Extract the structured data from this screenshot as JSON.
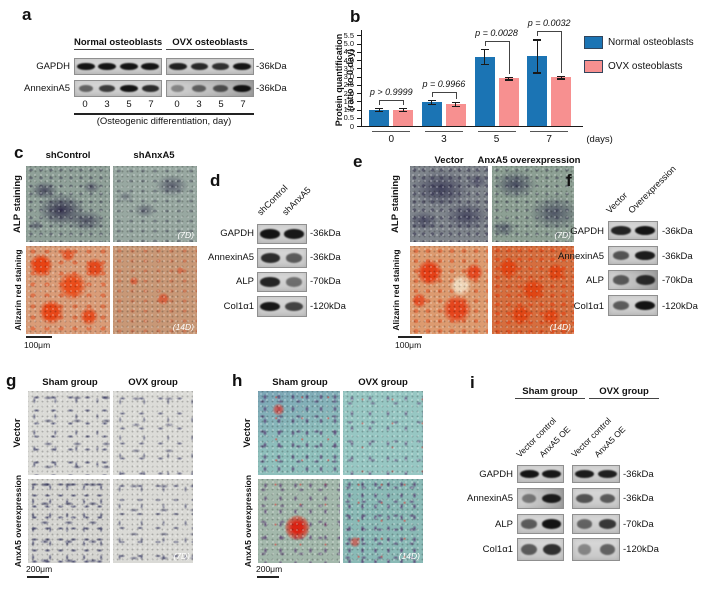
{
  "panels": {
    "a": {
      "label": "a",
      "group1": "Normal osteoblasts",
      "group2": "OVX osteoblasts",
      "row1": "GAPDH",
      "row2": "AnnexinA5",
      "kda1": "-36kDa",
      "kda2": "-36kDa",
      "lanes": [
        "0",
        "3",
        "5",
        "7"
      ],
      "caption": "(Osteogenic differentiation, day)"
    },
    "b": {
      "label": "b"
    },
    "c": {
      "label": "c",
      "col1": "shControl",
      "col2": "shAnxA5",
      "row1": "ALP staining",
      "row2": "Alizarin red staining",
      "tag1": "(7D)",
      "tag2": "(14D)",
      "scale": "100μm"
    },
    "d": {
      "label": "d",
      "lane1": "shControl",
      "lane2": "shAnxA5",
      "rows": [
        "GAPDH",
        "AnnexinA5",
        "ALP",
        "Col1α1"
      ],
      "kdas": [
        "-36kDa",
        "-36kDa",
        "-70kDa",
        "-120kDa"
      ]
    },
    "e": {
      "label": "e",
      "col1": "Vector",
      "col2": "AnxA5 overexpression",
      "row1": "ALP staining",
      "row2": "Alizarin red staining",
      "tag1": "(7D)",
      "tag2": "(14D)",
      "scale": "100μm"
    },
    "f": {
      "label": "f",
      "lane1": "Vector",
      "lane2": "Overexpression",
      "rows": [
        "GAPDH",
        "AnnexinA5",
        "ALP",
        "Col1α1"
      ],
      "kdas": [
        "-36kDa",
        "-36kDa",
        "-70kDa",
        "-120kDa"
      ]
    },
    "g": {
      "label": "g",
      "col1": "Sham group",
      "col2": "OVX group",
      "row1": "Vector",
      "row2": "AnxA5 overexpression",
      "tag": "(7D)",
      "scale": "200μm"
    },
    "h": {
      "label": "h",
      "col1": "Sham group",
      "col2": "OVX group",
      "row1": "Vector",
      "row2": "AnxA5 overexpression",
      "tag": "(14D)",
      "scale": "200μm"
    },
    "i": {
      "label": "i",
      "group1": "Sham group",
      "group2": "OVX group",
      "lanes": [
        "Vector control",
        "AnxA5 OE",
        "Vector control",
        "AnxA5 OE"
      ],
      "rows": [
        "GAPDH",
        "AnnexinA5",
        "ALP",
        "Col1α1"
      ],
      "kdas": [
        "-36kDa",
        "-36kDa",
        "-70kDa",
        "-120kDa"
      ]
    }
  },
  "chart_data": {
    "type": "bar",
    "categories": [
      "0",
      "3",
      "5",
      "7"
    ],
    "xlabel": "(days)",
    "ylabel_lines": [
      "Protein quantification",
      "(ratio to 0 day)"
    ],
    "ylim": [
      0,
      5.5
    ],
    "ytick_step": 0.5,
    "grid": false,
    "legend_position": "right",
    "series": [
      {
        "name": "Normal osteoblasts",
        "color": "#1b74b4",
        "values": [
          1.0,
          1.45,
          4.2,
          4.25
        ],
        "errors": [
          0.1,
          0.12,
          0.45,
          1.0
        ]
      },
      {
        "name": "OVX osteoblasts",
        "color": "#f79090",
        "values": [
          1.0,
          1.33,
          2.9,
          2.95
        ],
        "errors": [
          0.08,
          0.12,
          0.08,
          0.07
        ]
      }
    ],
    "p_values": [
      "p > 0.9999",
      "p = 0.9966",
      "p = 0.0028",
      "p = 0.0032"
    ]
  },
  "blots": {
    "a_gapdh_n": [
      0.95,
      0.95,
      0.95,
      0.95
    ],
    "a_gapdh_o": [
      0.88,
      0.82,
      0.78,
      0.95
    ],
    "a_anx_n": [
      0.45,
      0.7,
      0.95,
      0.8
    ],
    "a_anx_o": [
      0.22,
      0.45,
      0.55,
      0.97
    ],
    "d_gapdh": [
      0.95,
      0.92
    ],
    "d_anx": [
      0.8,
      0.5
    ],
    "d_alp": [
      0.85,
      0.38
    ],
    "d_col": [
      0.92,
      0.65
    ],
    "f_gapdh": [
      0.85,
      0.95
    ],
    "f_anx": [
      0.55,
      0.9
    ],
    "f_alp": [
      0.5,
      0.8
    ],
    "f_col": [
      0.5,
      0.95
    ],
    "i_gapdh_s": [
      0.95,
      0.92
    ],
    "i_gapdh_o": [
      0.9,
      0.88
    ],
    "i_anx_s": [
      0.3,
      0.9
    ],
    "i_anx_o": [
      0.55,
      0.5
    ],
    "i_alp_s": [
      0.5,
      0.95
    ],
    "i_alp_o": [
      0.45,
      0.72
    ],
    "i_col_s": [
      0.5,
      0.78
    ],
    "i_col_o": [
      0.22,
      0.45
    ]
  }
}
